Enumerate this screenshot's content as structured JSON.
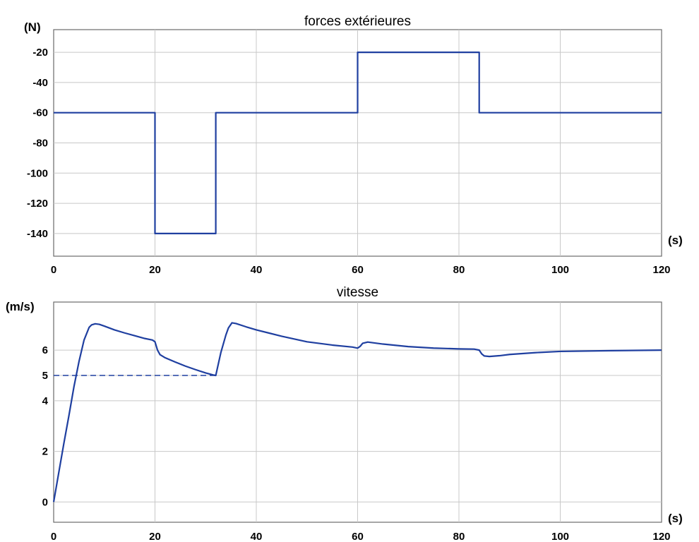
{
  "chart_data": [
    {
      "type": "line",
      "title": "forces extérieures",
      "xlabel": "(s)",
      "ylabel": "(N)",
      "xlim": [
        0,
        120
      ],
      "ylim": [
        -155,
        -5
      ],
      "xticks": [
        0,
        20,
        40,
        60,
        80,
        100,
        120
      ],
      "yticks": [
        -140,
        -120,
        -100,
        -80,
        -60,
        -40,
        -20
      ],
      "grid": true,
      "color": "#1f3fa0",
      "series": [
        {
          "x": [
            0,
            20,
            20,
            32,
            32,
            60,
            60,
            84,
            84,
            120
          ],
          "y": [
            -60,
            -60,
            -140,
            -140,
            -60,
            -60,
            -20,
            -20,
            -60,
            -60
          ]
        }
      ]
    },
    {
      "type": "line",
      "title": "vitesse",
      "xlabel": "(s)",
      "ylabel": "(m/s)",
      "xlim": [
        0,
        120
      ],
      "ylim": [
        -0.8,
        7.9
      ],
      "xticks": [
        0,
        20,
        40,
        60,
        80,
        100,
        120
      ],
      "yticks": [
        0,
        2,
        4,
        5,
        6
      ],
      "grid": true,
      "color": "#1f3fa0",
      "series": [
        {
          "x": [
            0,
            1,
            2,
            3,
            4,
            5,
            6,
            7,
            7.5,
            8.2,
            9,
            10,
            12,
            14,
            16,
            18,
            19.5,
            20,
            20.5,
            21,
            22,
            24,
            26,
            28,
            30,
            31.5,
            32,
            33,
            34,
            34.5,
            35.2,
            36,
            38,
            40,
            45,
            50,
            55,
            59,
            60,
            60.5,
            61,
            62,
            65,
            70,
            75,
            80,
            83,
            84,
            84.5,
            85,
            86,
            88,
            90,
            95,
            100,
            110,
            120
          ],
          "y": [
            0,
            1.15,
            2.3,
            3.4,
            4.55,
            5.55,
            6.4,
            6.9,
            7.0,
            7.04,
            7.02,
            6.95,
            6.8,
            6.68,
            6.57,
            6.46,
            6.4,
            6.33,
            6.0,
            5.82,
            5.7,
            5.53,
            5.37,
            5.23,
            5.1,
            5.02,
            5.0,
            5.9,
            6.6,
            6.88,
            7.08,
            7.05,
            6.92,
            6.8,
            6.55,
            6.33,
            6.2,
            6.12,
            6.08,
            6.15,
            6.27,
            6.32,
            6.24,
            6.14,
            6.08,
            6.05,
            6.04,
            6.0,
            5.85,
            5.77,
            5.75,
            5.78,
            5.83,
            5.9,
            5.95,
            5.98,
            6.0
          ]
        },
        {
          "style": "dashed",
          "x": [
            0,
            32
          ],
          "y": [
            5,
            5
          ]
        }
      ]
    }
  ]
}
